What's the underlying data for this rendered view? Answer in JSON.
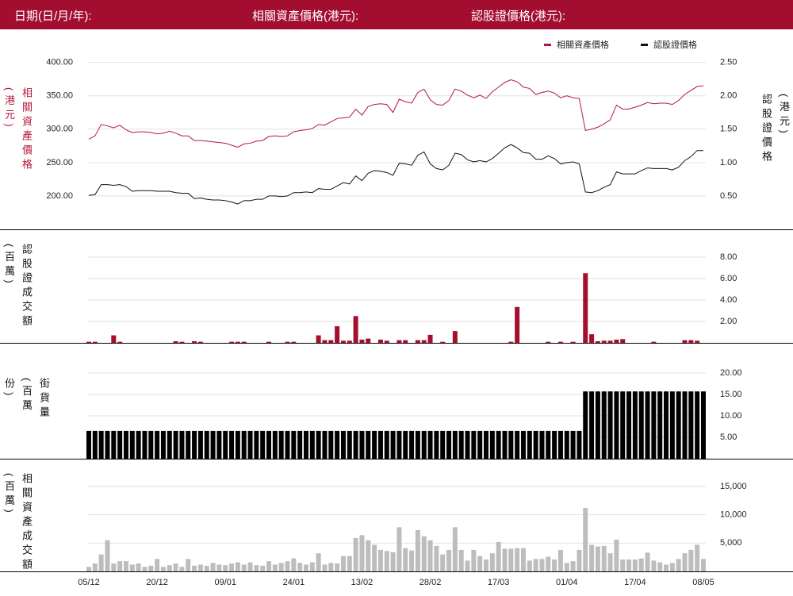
{
  "header": {
    "date_label": "日期(日/月/年):",
    "underlying_price_label": "相關資產價格(港元):",
    "warrant_price_label": "認股證價格(港元):"
  },
  "chart_data": [
    {
      "type": "line",
      "y_label": "相關資產價格(港元)",
      "y2_label": "認股證價格(港元)",
      "ylim": [
        150,
        415
      ],
      "y2lim": [
        0,
        2.65
      ],
      "grid": true,
      "legend": "top-right",
      "yticks": [
        {
          "value": 200,
          "label": "200.00"
        },
        {
          "value": 250,
          "label": "250.00"
        },
        {
          "value": 300,
          "label": "300.00"
        },
        {
          "value": 350,
          "label": "350.00"
        },
        {
          "value": 400,
          "label": "400.00"
        }
      ],
      "y2ticks": [
        {
          "value": 0.5,
          "label": "0.50"
        },
        {
          "value": 1,
          "label": "1.00"
        },
        {
          "value": 1.5,
          "label": "1.50"
        },
        {
          "value": 2,
          "label": "2.00"
        },
        {
          "value": 2.5,
          "label": "2.50"
        }
      ],
      "series": [
        {
          "name": "相關資產價格",
          "color": "#b5173b",
          "values": [
            285,
            290,
            307,
            305,
            302,
            306,
            299,
            295,
            296,
            296,
            295,
            293,
            294,
            297,
            294,
            290,
            290,
            283,
            283,
            282,
            281,
            280,
            279,
            276,
            273,
            278,
            279,
            282,
            283,
            289,
            290,
            289,
            290,
            296,
            298,
            299,
            301,
            307,
            306,
            311,
            316,
            317,
            318,
            330,
            321,
            334,
            337,
            338,
            337,
            325,
            345,
            341,
            339,
            355,
            360,
            344,
            337,
            336,
            343,
            360,
            357,
            351,
            347,
            351,
            346,
            356,
            363,
            370,
            374,
            371,
            363,
            361,
            352,
            355,
            357,
            354,
            347,
            350,
            347,
            346,
            298,
            300,
            303,
            308,
            314,
            336,
            330,
            330,
            333,
            336,
            340,
            338,
            339,
            339,
            337,
            343,
            352,
            358,
            364,
            365
          ]
        },
        {
          "name": "認股證價格",
          "color": "#111111",
          "axis": "y2",
          "values": [
            0.51,
            0.52,
            0.67,
            0.67,
            0.66,
            0.67,
            0.64,
            0.57,
            0.58,
            0.58,
            0.58,
            0.57,
            0.57,
            0.57,
            0.55,
            0.54,
            0.54,
            0.46,
            0.47,
            0.45,
            0.44,
            0.44,
            0.43,
            0.41,
            0.38,
            0.43,
            0.43,
            0.45,
            0.45,
            0.5,
            0.5,
            0.49,
            0.5,
            0.55,
            0.55,
            0.56,
            0.55,
            0.61,
            0.6,
            0.6,
            0.65,
            0.7,
            0.68,
            0.8,
            0.73,
            0.84,
            0.88,
            0.87,
            0.85,
            0.81,
            0.99,
            0.98,
            0.96,
            1.11,
            1.16,
            0.98,
            0.91,
            0.89,
            0.96,
            1.14,
            1.12,
            1.04,
            1.01,
            1.03,
            1.01,
            1.06,
            1.14,
            1.22,
            1.27,
            1.22,
            1.15,
            1.14,
            1.05,
            1.05,
            1.1,
            1.06,
            0.98,
            1.0,
            1.01,
            0.98,
            0.56,
            0.55,
            0.58,
            0.63,
            0.67,
            0.86,
            0.83,
            0.83,
            0.83,
            0.88,
            0.92,
            0.91,
            0.91,
            0.91,
            0.89,
            0.93,
            1.03,
            1.09,
            1.18,
            1.18
          ]
        }
      ]
    },
    {
      "type": "bar",
      "y_label": "認股證成交額(百萬)",
      "ylim": [
        0,
        10
      ],
      "grid": true,
      "yticks": [
        {
          "value": 2,
          "label": "2.00"
        },
        {
          "value": 4,
          "label": "4.00"
        },
        {
          "value": 6,
          "label": "6.00"
        },
        {
          "value": 8,
          "label": "8.00"
        }
      ],
      "series": [
        {
          "color": "#a50e2d",
          "values": [
            0.1,
            0.1,
            0,
            0,
            0.7,
            0.1,
            0,
            0,
            0,
            0,
            0,
            0,
            0,
            0,
            0.15,
            0.1,
            0,
            0.15,
            0.1,
            0,
            0,
            0,
            0,
            0.1,
            0.1,
            0.1,
            0,
            0,
            0,
            0.1,
            0,
            0,
            0.1,
            0.1,
            0,
            0,
            0,
            0.7,
            0.25,
            0.25,
            1.55,
            0.2,
            0.2,
            2.5,
            0.3,
            0.4,
            0,
            0.3,
            0.2,
            0,
            0.25,
            0.25,
            0,
            0.25,
            0.25,
            0.75,
            0,
            0.1,
            0,
            1.1,
            0,
            0,
            0,
            0,
            0,
            0,
            0,
            0,
            0.1,
            3.35,
            0,
            0,
            0,
            0,
            0.1,
            0,
            0.1,
            0,
            0.1,
            0,
            6.5,
            0.8,
            0.15,
            0.2,
            0.2,
            0.3,
            0.35,
            0,
            0,
            0,
            0,
            0.1,
            0,
            0,
            0,
            0,
            0.25,
            0.25,
            0.2,
            0
          ]
        }
      ]
    },
    {
      "type": "bar",
      "y_label": "街貨量(百萬份)",
      "ylim": [
        0,
        25
      ],
      "grid": true,
      "yticks": [
        {
          "value": 5,
          "label": "5.00"
        },
        {
          "value": 10,
          "label": "10.00"
        },
        {
          "value": 15,
          "label": "15.00"
        },
        {
          "value": 20,
          "label": "20.00"
        }
      ],
      "series": [
        {
          "color": "#000000",
          "values": [
            6.5,
            6.5,
            6.5,
            6.5,
            6.5,
            6.5,
            6.5,
            6.5,
            6.5,
            6.5,
            6.5,
            6.5,
            6.5,
            6.5,
            6.5,
            6.5,
            6.5,
            6.5,
            6.5,
            6.5,
            6.5,
            6.5,
            6.5,
            6.5,
            6.5,
            6.5,
            6.5,
            6.5,
            6.5,
            6.5,
            6.5,
            6.5,
            6.5,
            6.5,
            6.5,
            6.5,
            6.5,
            6.5,
            6.5,
            6.5,
            6.5,
            6.5,
            6.5,
            6.5,
            6.5,
            6.5,
            6.5,
            6.5,
            6.5,
            6.5,
            6.5,
            6.5,
            6.5,
            6.5,
            6.5,
            6.5,
            6.5,
            6.5,
            6.5,
            6.5,
            6.5,
            6.5,
            6.5,
            6.5,
            6.5,
            6.5,
            6.5,
            6.5,
            6.5,
            6.5,
            6.5,
            6.5,
            6.5,
            6.5,
            6.5,
            6.5,
            6.5,
            6.5,
            6.5,
            6.5,
            15.7,
            15.7,
            15.7,
            15.7,
            15.7,
            15.7,
            15.7,
            15.7,
            15.7,
            15.7,
            15.7,
            15.7,
            15.7,
            15.7,
            15.7,
            15.7,
            15.7,
            15.7,
            15.7,
            15.7
          ]
        }
      ]
    },
    {
      "type": "bar",
      "y_label": "相關資產成交額(百萬)",
      "ylim": [
        0,
        18500
      ],
      "grid": true,
      "yticks": [
        {
          "value": 5000,
          "label": "5,000"
        },
        {
          "value": 10000,
          "label": "10,000"
        },
        {
          "value": 15000,
          "label": "15,000"
        }
      ],
      "categories": [
        "05/12",
        null,
        null,
        null,
        null,
        null,
        null,
        null,
        null,
        null,
        null,
        "20/12",
        null,
        null,
        null,
        null,
        null,
        null,
        null,
        null,
        null,
        null,
        "09/01",
        null,
        null,
        null,
        null,
        null,
        null,
        null,
        null,
        null,
        null,
        "24/01",
        null,
        null,
        null,
        null,
        null,
        null,
        null,
        null,
        null,
        null,
        "13/02",
        null,
        null,
        null,
        null,
        null,
        null,
        null,
        null,
        null,
        null,
        "28/02",
        null,
        null,
        null,
        null,
        null,
        null,
        null,
        null,
        null,
        null,
        "17/03",
        null,
        null,
        null,
        null,
        null,
        null,
        null,
        null,
        null,
        null,
        "01/04",
        null,
        null,
        null,
        null,
        null,
        null,
        null,
        null,
        null,
        null,
        "17/04",
        null,
        null,
        null,
        null,
        null,
        null,
        null,
        null,
        null,
        null,
        "08/05"
      ],
      "series": [
        {
          "color": "#bdbdbd",
          "values": [
            800,
            1400,
            3000,
            5500,
            1400,
            1800,
            1800,
            1200,
            1400,
            800,
            1000,
            2200,
            800,
            1100,
            1400,
            800,
            2200,
            1000,
            1200,
            1000,
            1500,
            1200,
            1100,
            1400,
            1600,
            1200,
            1600,
            1100,
            1000,
            1800,
            1200,
            1500,
            1800,
            2300,
            1500,
            1200,
            1600,
            3200,
            1200,
            1500,
            1400,
            2700,
            2700,
            5900,
            6400,
            5500,
            4700,
            3800,
            3600,
            3400,
            7800,
            4100,
            3700,
            7300,
            6200,
            5500,
            4500,
            3000,
            3800,
            7800,
            3800,
            1900,
            3800,
            2700,
            2100,
            3200,
            5200,
            4000,
            4000,
            4100,
            4100,
            1900,
            2200,
            2200,
            2600,
            2100,
            3800,
            1500,
            1800,
            3800,
            11200,
            4700,
            4400,
            4500,
            3200,
            5600,
            2100,
            2100,
            2100,
            2300,
            3300,
            1900,
            1600,
            1200,
            1500,
            2200,
            3200,
            3800,
            4700,
            2200
          ]
        }
      ]
    }
  ]
}
